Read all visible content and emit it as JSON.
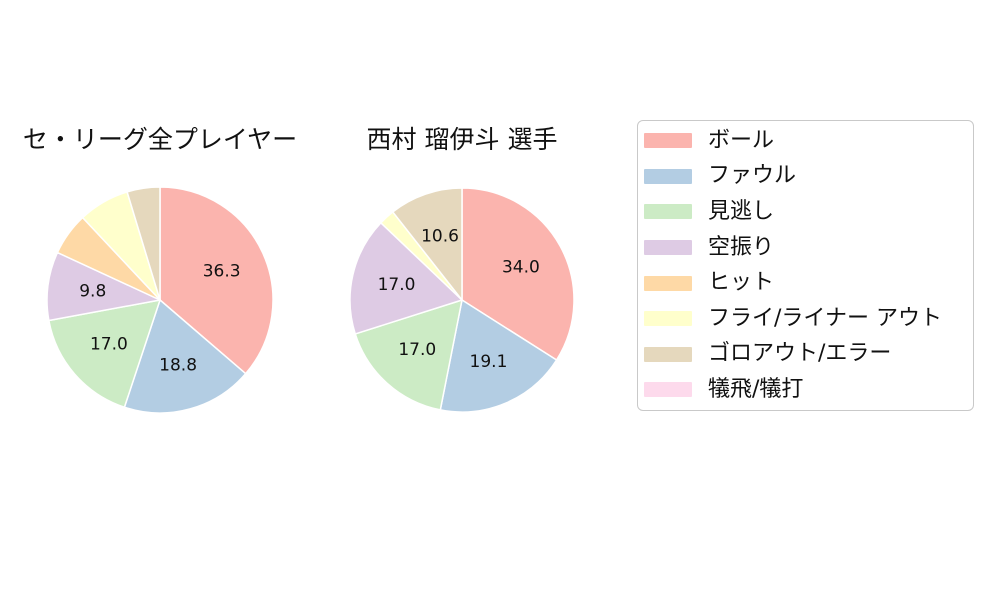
{
  "page": {
    "background": "#ffffff",
    "text_color": "#111111"
  },
  "legend": {
    "border_color": "#c9c9c9",
    "position": "right",
    "items": [
      {
        "key": "ball",
        "label": "ボール",
        "color": "#fbb4ae"
      },
      {
        "key": "foul",
        "label": "ファウル",
        "color": "#b3cde3"
      },
      {
        "key": "called-strike",
        "label": "見逃し",
        "color": "#ccebc5"
      },
      {
        "key": "swinging-strike",
        "label": "空振り",
        "color": "#decbe4"
      },
      {
        "key": "hit",
        "label": "ヒット",
        "color": "#fed9a6"
      },
      {
        "key": "fly-liner-out",
        "label": "フライ/ライナー アウト",
        "color": "#ffffcc"
      },
      {
        "key": "groundout-error",
        "label": "ゴロアウト/エラー",
        "color": "#e5d8bd"
      },
      {
        "key": "sac-fly-bunt",
        "label": "犠飛/犠打",
        "color": "#fddaec"
      }
    ]
  },
  "chart_data": [
    {
      "type": "pie",
      "title": "セ・リーグ全プレイヤー",
      "units": "percent",
      "start_angle": "12-oclock",
      "direction": "clockwise",
      "slices": [
        {
          "key": "ball",
          "category": "ボール",
          "value": 36.3,
          "label": "36.3",
          "color": "#fbb4ae"
        },
        {
          "key": "foul",
          "category": "ファウル",
          "value": 18.8,
          "label": "18.8",
          "color": "#b3cde3"
        },
        {
          "key": "called-strike",
          "category": "見逃し",
          "value": 17.0,
          "label": "17.0",
          "color": "#ccebc5"
        },
        {
          "key": "swinging-strike",
          "category": "空振り",
          "value": 9.8,
          "label": "9.8",
          "color": "#decbe4"
        },
        {
          "key": "hit",
          "category": "ヒット",
          "value": 6.1,
          "label": null,
          "color": "#fed9a6"
        },
        {
          "key": "fly-liner-out",
          "category": "フライ/ライナー アウト",
          "value": 7.3,
          "label": null,
          "color": "#ffffcc"
        },
        {
          "key": "groundout-error",
          "category": "ゴロアウト/エラー",
          "value": 4.7,
          "label": null,
          "color": "#e5d8bd"
        },
        {
          "key": "sac-fly-bunt",
          "category": "犠飛/犠打",
          "value": 0.0,
          "label": null,
          "color": "#fddaec"
        }
      ]
    },
    {
      "type": "pie",
      "title": "西村 瑠伊斗 選手",
      "units": "percent",
      "start_angle": "12-oclock",
      "direction": "clockwise",
      "slices": [
        {
          "key": "ball",
          "category": "ボール",
          "value": 34.0,
          "label": "34.0",
          "color": "#fbb4ae"
        },
        {
          "key": "foul",
          "category": "ファウル",
          "value": 19.1,
          "label": "19.1",
          "color": "#b3cde3"
        },
        {
          "key": "called-strike",
          "category": "見逃し",
          "value": 17.0,
          "label": "17.0",
          "color": "#ccebc5"
        },
        {
          "key": "swinging-strike",
          "category": "空振り",
          "value": 17.0,
          "label": "17.0",
          "color": "#decbe4"
        },
        {
          "key": "hit",
          "category": "ヒット",
          "value": 0.0,
          "label": null,
          "color": "#fed9a6"
        },
        {
          "key": "fly-liner-out",
          "category": "フライ/ライナー アウト",
          "value": 2.3,
          "label": null,
          "color": "#ffffcc"
        },
        {
          "key": "groundout-error",
          "category": "ゴロアウト/エラー",
          "value": 10.6,
          "label": "10.6",
          "color": "#e5d8bd"
        },
        {
          "key": "sac-fly-bunt",
          "category": "犠飛/犠打",
          "value": 0.0,
          "label": null,
          "color": "#fddaec"
        }
      ]
    }
  ]
}
